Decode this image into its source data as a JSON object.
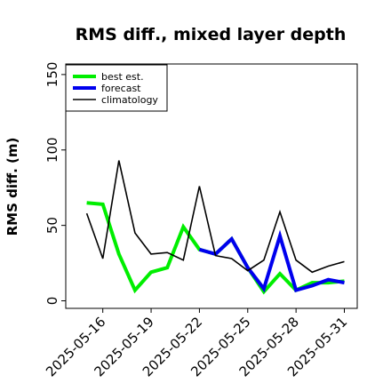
{
  "chart_data": {
    "type": "line",
    "title": "RMS diff., mixed layer depth",
    "xlabel": "",
    "ylabel": "RMS diff. (m)",
    "x": [
      "2025-05-15",
      "2025-05-16",
      "2025-05-17",
      "2025-05-18",
      "2025-05-19",
      "2025-05-20",
      "2025-05-21",
      "2025-05-22",
      "2025-05-23",
      "2025-05-24",
      "2025-05-25",
      "2025-05-26",
      "2025-05-27",
      "2025-05-28",
      "2025-05-29",
      "2025-05-30",
      "2025-05-31"
    ],
    "xticks": [
      "2025-05-16",
      "2025-05-19",
      "2025-05-22",
      "2025-05-25",
      "2025-05-28",
      "2025-05-31"
    ],
    "highlight_tick": "2025-05-22",
    "highlight_color": "#228b22",
    "ylim": [
      -5,
      157
    ],
    "yticks": [
      0,
      50,
      100,
      150
    ],
    "grid": false,
    "legend_position": "top-left",
    "series": [
      {
        "name": "best est.",
        "color": "#00ee00",
        "width": 4,
        "values": [
          65,
          64,
          31,
          7,
          19,
          22,
          49,
          34,
          31,
          41,
          22,
          6,
          18,
          7,
          12,
          12,
          13
        ]
      },
      {
        "name": "forecast",
        "color": "#0000ee",
        "width": 4,
        "values": [
          null,
          null,
          null,
          null,
          null,
          null,
          null,
          34,
          31,
          41,
          22,
          8,
          43,
          7,
          10,
          14,
          12
        ]
      },
      {
        "name": "climatology",
        "color": "#000000",
        "width": 1.6,
        "values": [
          58,
          28,
          93,
          45,
          31,
          32,
          27,
          76,
          30,
          28,
          20,
          27,
          59,
          27,
          19,
          23,
          26
        ]
      }
    ]
  }
}
